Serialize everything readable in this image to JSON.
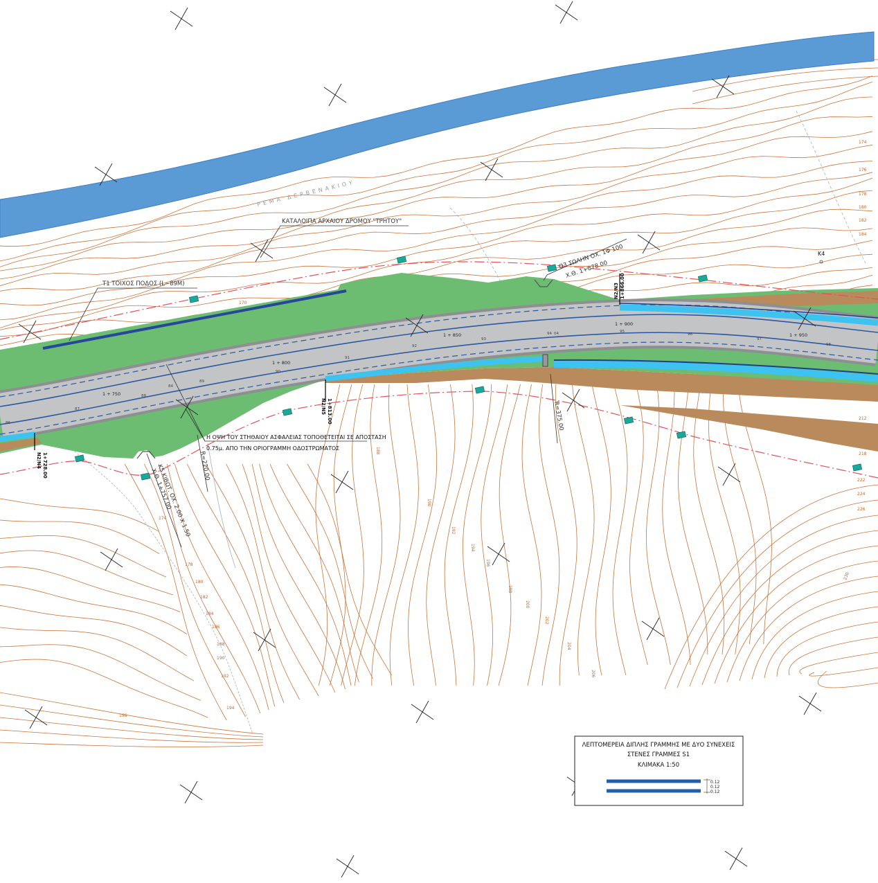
{
  "labels": {
    "river": "ΡΕΜΑ ΔΕΡΒΕΝΑΚΙΟΥ",
    "ancient_road": "ΚΑΤΑΛΟΙΠΑ ΑΡΧΑΙΟΥ ΔΡΟΜΟΥ \"ΤΡΗΤΟΥ\"",
    "wall": "Τ1 ΤΟΙΧΟΣ ΠΟΔΟΣ (L~89M)",
    "pipe_o3": "Ο3 ΣΩΛΗΝ ΟΧ. 1Φ 100",
    "pipe_o3_chainage": "Χ.Θ. 1+878.00",
    "culvert_k5": "Κ5 ΚΙΒΩΤ. ΟΧ. 2.00 Χ 1.50",
    "culvert_k5_chainage": "Χ.Θ. 1+757.00",
    "k4": "Κ4",
    "barrier_note_line1": "Η ΟΨΗ ΤΟΥ ΣΤΗΘΑΙΟΥ ΑΣΦΑΛΕΙΑΣ ΤΟΠΟΘΕΤΕΙΤΑΙ ΣΕ ΑΠΟΣΤΑΣΗ",
    "barrier_note_line2": "0.75μ. ΑΠΟ ΤΗΝ ΟΡΙΟΓΡΑΜΜΗ ΟΔΟΣΤΡΩΜΑΤΟΣ",
    "radius_right": "R=375.00",
    "radius_left": "R=220.00"
  },
  "nodes": [
    {
      "name": "N2/N3",
      "chainage": "1+866.00"
    },
    {
      "name": "N2/N4",
      "chainage": "1+728.00"
    },
    {
      "name": "N2/N5",
      "chainage": "1+813.00"
    }
  ],
  "chainages": [
    "1 + 750",
    "1 + 800",
    "1 + 850",
    "1 + 900",
    "1 + 950"
  ],
  "stations": [
    "86",
    "87",
    "88",
    "84",
    "89",
    "90",
    "91",
    "92",
    "93",
    "94",
    "04",
    "95",
    "96",
    "97",
    "98"
  ],
  "contour_labels": [
    "174",
    "176",
    "178",
    "180",
    "182",
    "184",
    "170",
    "212",
    "218",
    "222",
    "224",
    "226",
    "230",
    "174",
    "178",
    "180",
    "182",
    "184",
    "186",
    "188",
    "190",
    "192",
    "194",
    "196",
    "188",
    "190",
    "192",
    "194",
    "196",
    "198",
    "200",
    "202",
    "204",
    "206"
  ],
  "legend": {
    "title_line1": "ΛΕΠΤΟΜΕΡΕΙΑ ΔΙΠΛΗΣ ΓΡΑΜΜΗΣ ΜΕ ΔΥΟ ΣΥΝΕΧΕΙΣ",
    "title_line2": "ΣΤΕΝΕΣ ΓΡΑΜΜΕΣ S1",
    "scale": "ΚΛΙΜΑΚΑ 1:50",
    "dims": [
      "0.12",
      "0.12",
      "0.12"
    ]
  },
  "colors": {
    "river": "#5b9bd5",
    "green": "#6cbd72",
    "road": "#c3c4c6",
    "road_edge": "#8d8f92",
    "lane_blue": "#2c58a2",
    "cyan": "#3ec3f0",
    "earth": "#b98a5b",
    "contour": "#c9743a",
    "boundary_red": "#e0525a",
    "marker_teal": "#1aa89a",
    "wall_blue": "#27479a"
  }
}
